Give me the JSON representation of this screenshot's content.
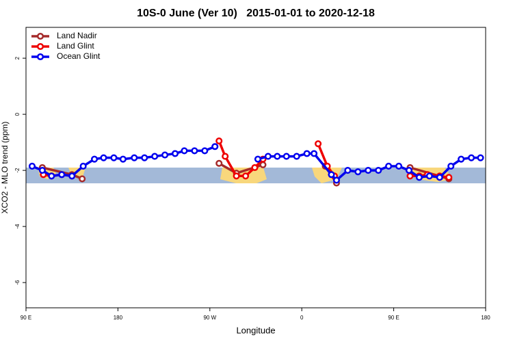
{
  "chart_data": {
    "type": "line",
    "title": "10S-0 June (Ver 10)   2015-01-01 to 2020-12-18",
    "x_label": "Longitude",
    "y_label": "XCO2 - MLO trend (ppm)",
    "xlim": [
      90,
      540
    ],
    "ylim": [
      -6.9,
      3.1
    ],
    "xticks": [
      {
        "value": 90,
        "label": "90 E"
      },
      {
        "value": 180,
        "label": "180"
      },
      {
        "value": 270,
        "label": "90 W"
      },
      {
        "value": 360,
        "label": "0"
      },
      {
        "value": 450,
        "label": "90 E"
      },
      {
        "value": 540,
        "label": "180"
      }
    ],
    "yticks": [
      -6,
      -4,
      -2,
      0,
      2
    ],
    "legend": "top-left",
    "series": [
      {
        "name": "Land Nadir",
        "color": "#a52a2a",
        "x": [
          106,
          135,
          145,
          200,
          279,
          296,
          322,
          350,
          383,
          394,
          420,
          466,
          504
        ],
        "values": [
          -1.9,
          -2.15,
          -2.3,
          null,
          -1.75,
          -2.1,
          -1.8,
          null,
          -1.85,
          -2.45,
          null,
          -1.9,
          -2.3
        ]
      },
      {
        "name": "Land Glint",
        "color": "#ee0000",
        "x": [
          107,
          115,
          125,
          135,
          200,
          279,
          285,
          296,
          305,
          314,
          322,
          350,
          376,
          385,
          392,
          420,
          466,
          475,
          483,
          495,
          504
        ],
        "values": [
          -2.15,
          -2.2,
          -2.15,
          -2.2,
          null,
          -0.95,
          -1.5,
          -2.2,
          -2.2,
          -1.9,
          -1.6,
          null,
          -1.05,
          -1.85,
          -2.2,
          null,
          -2.2,
          -2.2,
          -2.15,
          -2.2,
          -2.25
        ]
      },
      {
        "name": "Ocean Glint",
        "color": "#0000ee",
        "x": [
          96,
          106,
          115,
          125,
          135,
          146,
          157,
          166,
          176,
          185,
          196,
          206,
          216,
          226,
          236,
          245,
          255,
          265,
          275,
          296,
          317,
          327,
          336,
          345,
          355,
          365,
          372,
          389,
          394,
          405,
          415,
          425,
          435,
          445,
          455,
          465,
          475,
          485,
          495,
          506,
          516,
          526,
          535
        ],
        "values": [
          -1.85,
          -2.0,
          -2.2,
          -2.15,
          -2.2,
          -1.85,
          -1.6,
          -1.55,
          -1.55,
          -1.6,
          -1.55,
          -1.55,
          -1.5,
          -1.45,
          -1.4,
          -1.3,
          -1.3,
          -1.3,
          -1.15,
          null,
          -1.6,
          -1.5,
          -1.5,
          -1.5,
          -1.5,
          -1.4,
          -1.4,
          -2.15,
          -2.35,
          -2.0,
          -2.05,
          -2.0,
          -2.0,
          -1.85,
          -1.85,
          -2.0,
          -2.25,
          -2.2,
          -2.25,
          -1.85,
          -1.6,
          -1.55,
          -1.55
        ]
      }
    ]
  }
}
